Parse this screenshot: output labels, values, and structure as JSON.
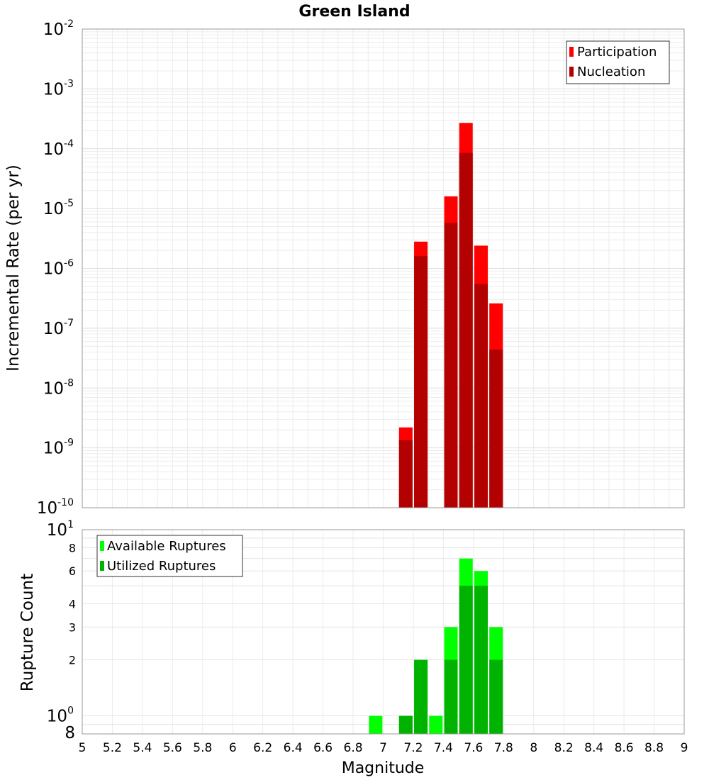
{
  "chart_data": [
    {
      "type": "bar",
      "title": "Green Island",
      "xlabel": "Magnitude",
      "ylabel": "Incremental Rate (per yr)",
      "yscale": "log",
      "xlim": [
        5,
        9
      ],
      "ylim": [
        1e-10,
        0.01
      ],
      "y_ticks": [
        {
          "base": "10",
          "exp": "-2"
        },
        {
          "base": "10",
          "exp": "-3"
        },
        {
          "base": "10",
          "exp": "-4"
        },
        {
          "base": "10",
          "exp": "-5"
        },
        {
          "base": "10",
          "exp": "-6"
        },
        {
          "base": "10",
          "exp": "-7"
        },
        {
          "base": "10",
          "exp": "-8"
        },
        {
          "base": "10",
          "exp": "-9"
        },
        {
          "base": "10",
          "exp": "-10"
        }
      ],
      "legend_position": "top-right",
      "x": [
        7.15,
        7.25,
        7.45,
        7.55,
        7.65,
        7.75
      ],
      "series": [
        {
          "name": "Participation",
          "color": "#ff0000",
          "values": [
            2.2e-09,
            2.8e-06,
            1.6e-05,
            0.00027,
            2.4e-06,
            2.6e-07
          ]
        },
        {
          "name": "Nucleation",
          "color": "#b30000",
          "values": [
            1.35e-09,
            1.6e-06,
            5.8e-06,
            8.5e-05,
            5.5e-07,
            4.4e-08
          ]
        }
      ]
    },
    {
      "type": "bar",
      "xlabel": "Magnitude",
      "ylabel": "Rupture Count",
      "yscale": "log",
      "xlim": [
        5,
        9
      ],
      "ylim": [
        0.8,
        10
      ],
      "y_major_ticks": [
        {
          "base": "10",
          "exp": "1"
        },
        {
          "base": "10",
          "exp": "0"
        }
      ],
      "y_minor_ticks": [
        "8",
        "6",
        "4",
        "3",
        "2",
        "8"
      ],
      "legend_position": "top-left",
      "x": [
        6.95,
        7.15,
        7.25,
        7.35,
        7.45,
        7.55,
        7.65,
        7.75
      ],
      "series": [
        {
          "name": "Available Ruptures",
          "color": "#00ff00",
          "values": [
            1,
            1,
            2,
            1,
            3,
            7,
            6,
            3
          ]
        },
        {
          "name": "Utilized Ruptures",
          "color": "#00b300",
          "values": [
            0,
            1,
            2,
            0,
            2,
            5,
            5,
            2
          ]
        }
      ],
      "x_ticks": [
        "5",
        "5.2",
        "5.4",
        "5.6",
        "5.8",
        "6",
        "6.2",
        "6.4",
        "6.6",
        "6.8",
        "7",
        "7.2",
        "7.4",
        "7.6",
        "7.8",
        "8",
        "8.2",
        "8.4",
        "8.6",
        "8.8",
        "9"
      ]
    }
  ]
}
